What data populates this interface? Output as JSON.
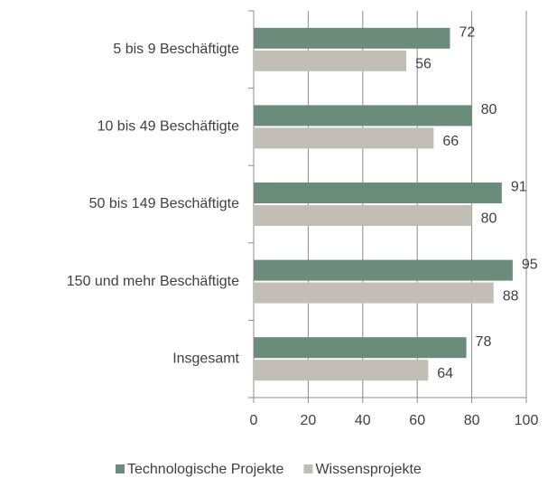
{
  "chart_data": {
    "type": "barh",
    "categories": [
      "5 bis 9 Beschäftigte",
      "10 bis 49 Beschäftigte",
      "50 bis 149 Beschäftigte",
      "150 und mehr Beschäftigte",
      "Insgesamt"
    ],
    "series": [
      {
        "name": "Technologische Projekte",
        "color": "#6b8c7a",
        "values": [
          72,
          80,
          91,
          95,
          78
        ]
      },
      {
        "name": "Wissensprojekte",
        "color": "#c2beb6",
        "values": [
          56,
          66,
          80,
          88,
          64
        ]
      }
    ],
    "xlim": [
      0,
      100
    ],
    "xticks": [
      0,
      20,
      40,
      60,
      80,
      100
    ],
    "grid": true,
    "legend": "bottom"
  }
}
